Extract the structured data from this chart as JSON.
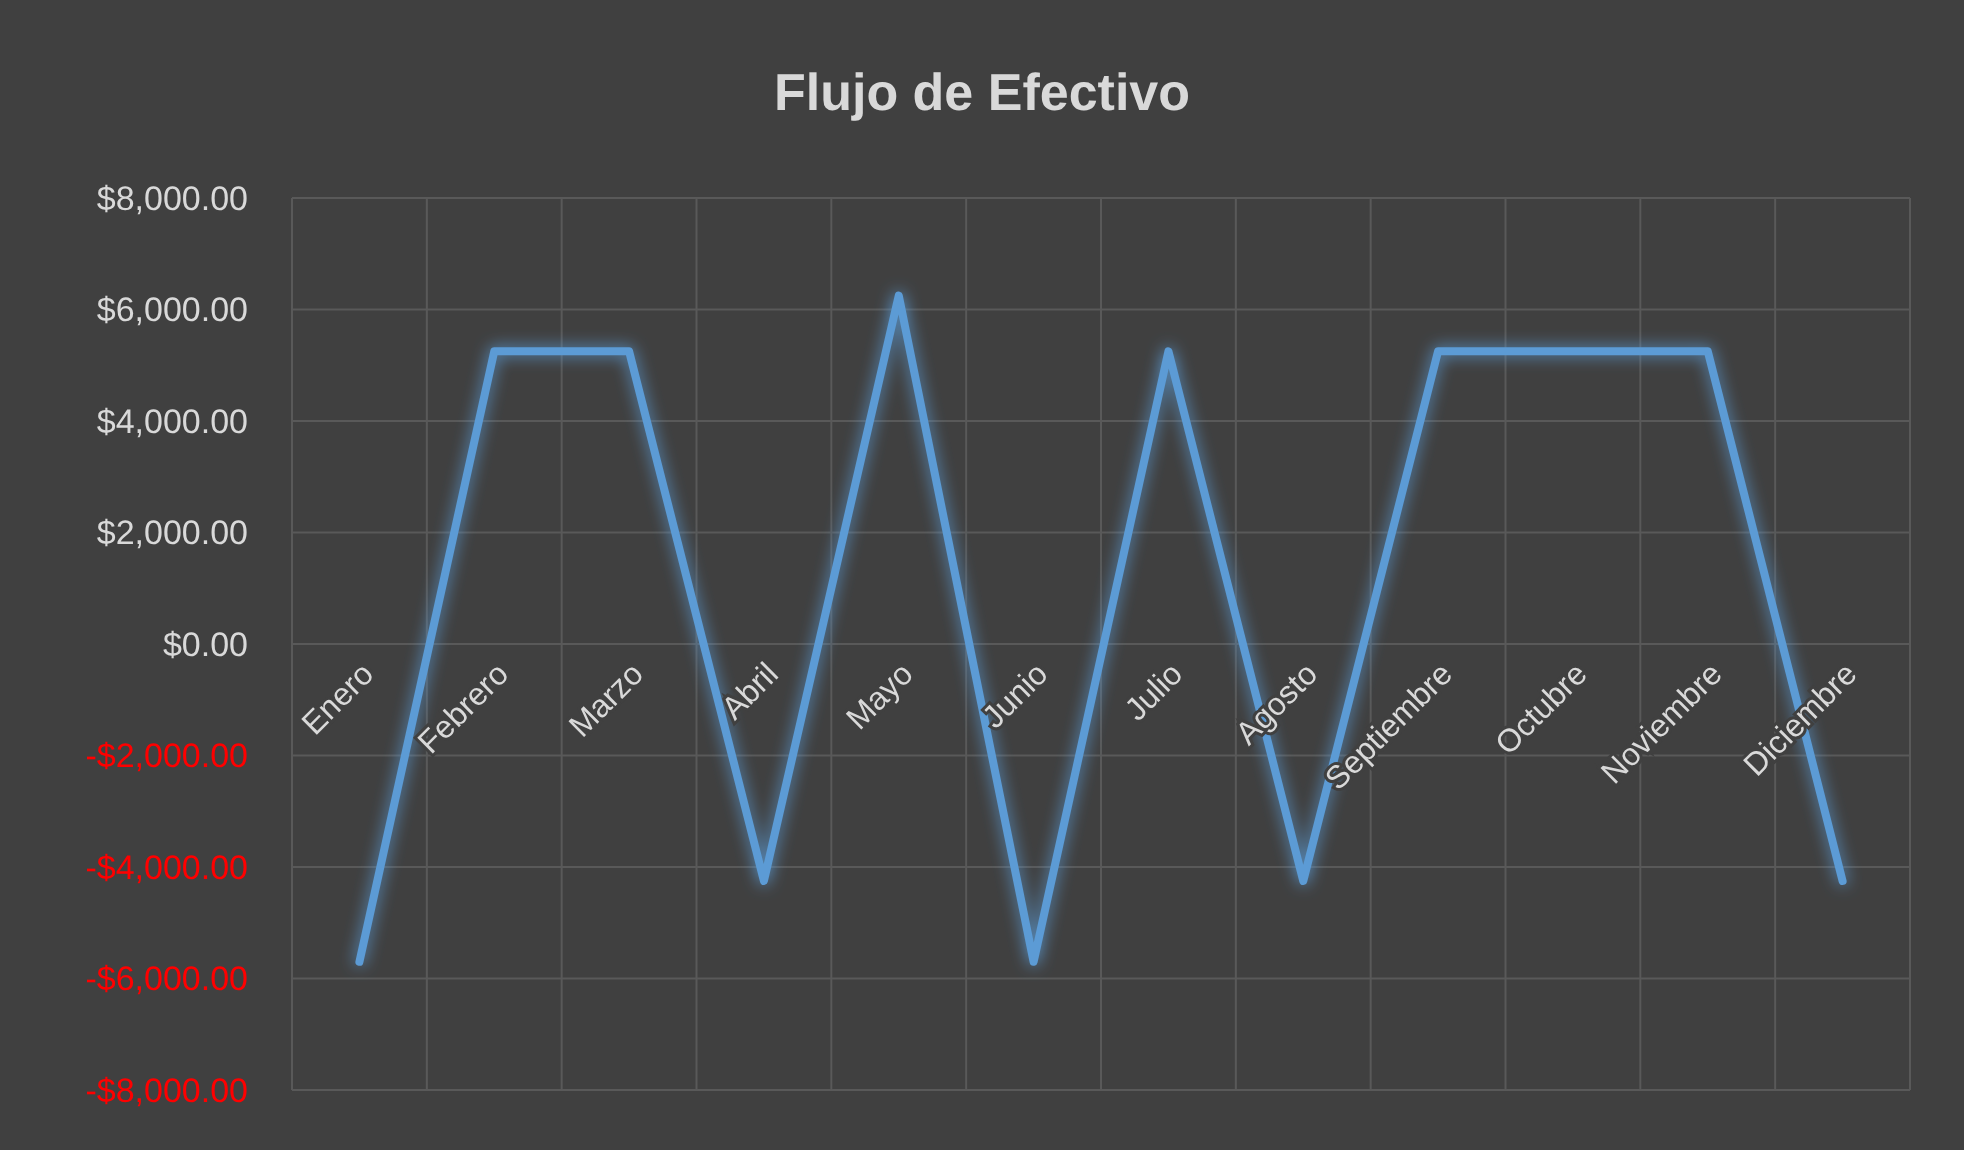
{
  "chart_data": {
    "type": "line",
    "title": "Flujo de Efectivo",
    "categories": [
      "Enero",
      "Febrero",
      "Marzo",
      "Abril",
      "Mayo",
      "Junio",
      "Julio",
      "Agosto",
      "Septiembre",
      "Octubre",
      "Noviembre",
      "Diciembre"
    ],
    "series": [
      {
        "color": "#5b9bd5",
        "values": [
          -5700,
          5250,
          5250,
          -4250,
          6250,
          -5700,
          5250,
          -4250,
          5250,
          5250,
          5250,
          -4250
        ]
      }
    ],
    "ylim": [
      -8000,
      8000
    ],
    "yticks": [
      {
        "value": -8000,
        "label": "-$8,000.00"
      },
      {
        "value": -6000,
        "label": "-$6,000.00"
      },
      {
        "value": -4000,
        "label": "-$4,000.00"
      },
      {
        "value": -2000,
        "label": "-$2,000.00"
      },
      {
        "value": 0,
        "label": "$0.00"
      },
      {
        "value": 2000,
        "label": "$2,000.00"
      },
      {
        "value": 4000,
        "label": "$4,000.00"
      },
      {
        "value": 6000,
        "label": "$6,000.00"
      },
      {
        "value": 8000,
        "label": "$8,000.00"
      }
    ],
    "grid": true,
    "marker": "none",
    "line_style": "solid"
  }
}
